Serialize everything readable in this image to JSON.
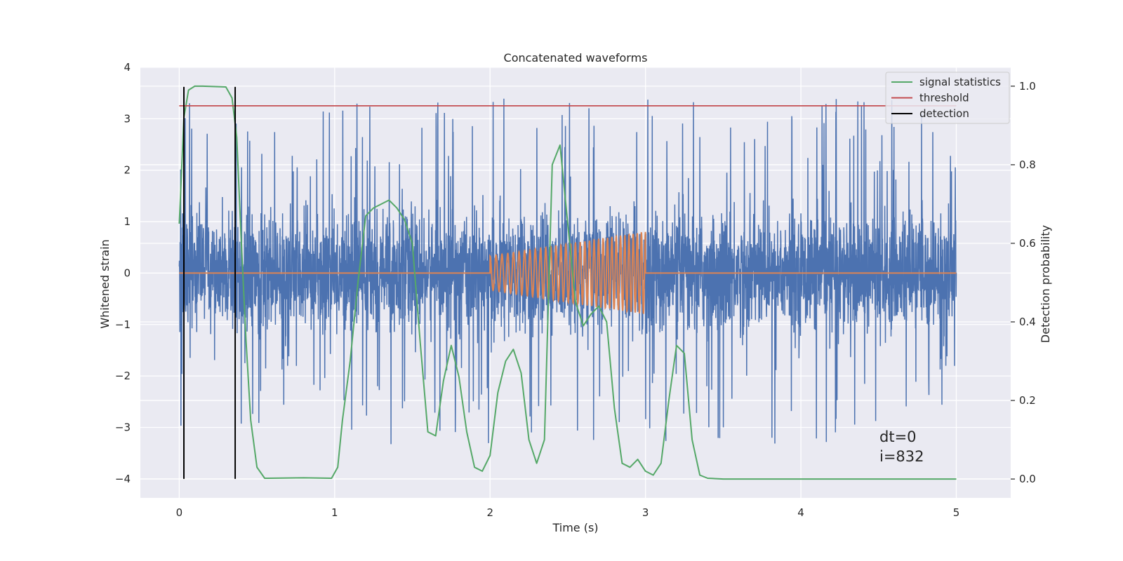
{
  "chart_data": {
    "type": "line",
    "title": "Concatenated waveforms",
    "xlabel": "Time (s)",
    "ylabel": "Whitened strain",
    "y2label": "Detection probability",
    "xlim": [
      -0.25,
      5.35
    ],
    "ylim": [
      -4.37,
      4.0
    ],
    "y2lim": [
      -0.048,
      1.048
    ],
    "x_ticks": [
      0,
      1,
      2,
      3,
      4,
      5
    ],
    "y_ticks": [
      -4,
      -3,
      -2,
      -1,
      0,
      1,
      2,
      3,
      4
    ],
    "y2_ticks": [
      0.0,
      0.2,
      0.4,
      0.6,
      0.8,
      1.0
    ],
    "x_tick_labels": [
      "0",
      "1",
      "2",
      "3",
      "4",
      "5"
    ],
    "y_tick_labels": [
      "−4",
      "−3",
      "−2",
      "−1",
      "0",
      "1",
      "2",
      "3",
      "4"
    ],
    "y2_tick_labels": [
      "0.0",
      "0.2",
      "0.4",
      "0.6",
      "0.8",
      "1.0"
    ],
    "grid": true,
    "legend_position": "top-right",
    "colors": {
      "background": "#eaeaf2",
      "grid": "#ffffff",
      "strain": "#4c72b0",
      "injection": "#dd8452",
      "signal_statistics": "#55a868",
      "threshold": "#c44e52",
      "detection": "#000000"
    },
    "strain_noise": {
      "x_range": [
        0,
        5
      ],
      "core_std": 0.55,
      "max_value": 3.62,
      "min_value": -4.0
    },
    "injection": {
      "x_range": [
        2,
        3
      ],
      "amplitude_start": 0.33,
      "amplitude_end": 0.8,
      "cycles": 32
    },
    "series": [
      {
        "name": "signal statistics",
        "axis": "y2",
        "x": [
          0,
          0.03,
          0.06,
          0.1,
          0.15,
          0.3,
          0.34,
          0.37,
          0.4,
          0.43,
          0.46,
          0.5,
          0.55,
          0.8,
          0.98,
          1.02,
          1.05,
          1.1,
          1.15,
          1.2,
          1.25,
          1.3,
          1.35,
          1.4,
          1.45,
          1.5,
          1.55,
          1.6,
          1.65,
          1.7,
          1.75,
          1.8,
          1.85,
          1.9,
          1.95,
          2.0,
          2.05,
          2.1,
          2.15,
          2.2,
          2.25,
          2.3,
          2.35,
          2.4,
          2.45,
          2.5,
          2.55,
          2.6,
          2.65,
          2.7,
          2.75,
          2.8,
          2.85,
          2.9,
          2.95,
          3.0,
          3.05,
          3.1,
          3.15,
          3.2,
          3.25,
          3.3,
          3.35,
          3.4,
          3.5,
          5.0
        ],
        "values": [
          0.65,
          0.92,
          0.99,
          1.0,
          1.0,
          0.998,
          0.97,
          0.87,
          0.6,
          0.35,
          0.15,
          0.03,
          0.002,
          0.003,
          0.002,
          0.03,
          0.15,
          0.3,
          0.5,
          0.67,
          0.69,
          0.7,
          0.71,
          0.69,
          0.66,
          0.6,
          0.35,
          0.12,
          0.11,
          0.25,
          0.34,
          0.26,
          0.12,
          0.03,
          0.02,
          0.06,
          0.22,
          0.3,
          0.33,
          0.27,
          0.1,
          0.04,
          0.1,
          0.8,
          0.85,
          0.65,
          0.45,
          0.39,
          0.42,
          0.44,
          0.4,
          0.18,
          0.04,
          0.03,
          0.05,
          0.02,
          0.01,
          0.04,
          0.2,
          0.34,
          0.32,
          0.1,
          0.01,
          0.002,
          0.0,
          0.0
        ]
      },
      {
        "name": "threshold",
        "axis": "y2",
        "x": [
          0,
          5
        ],
        "values": [
          0.95,
          0.95
        ]
      },
      {
        "name": "detection",
        "axis": "y",
        "vlines": [
          0.03,
          0.36
        ],
        "range": [
          -4.0,
          3.62
        ]
      }
    ],
    "annotations": [
      "dt=0",
      "i=832"
    ]
  }
}
